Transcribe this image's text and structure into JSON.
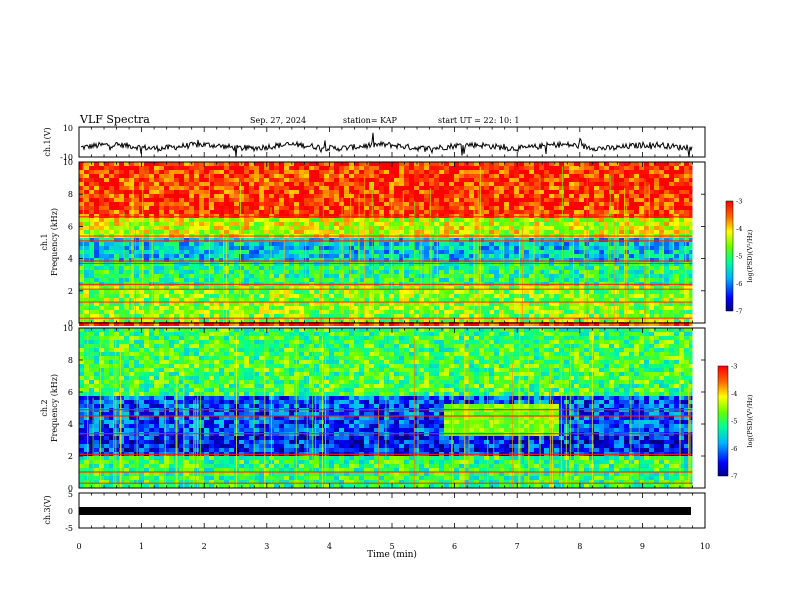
{
  "header": {
    "title": "VLF Spectra",
    "date": "Sep. 27, 2024",
    "station": "station= KAP",
    "start": "start  UT  =   22: 10: 1"
  },
  "chart_data": [
    {
      "type": "line",
      "panel": "ch1-waveform",
      "ylabel": "ch.1(V)",
      "ylim": [
        -10,
        10
      ],
      "yticks": [
        "10",
        "-10"
      ],
      "xlim": [
        0,
        10
      ],
      "series": [
        {
          "description_values_sampled": "noisy waveform around -3 V",
          "mean": -3,
          "range": [
            -10,
            10
          ]
        }
      ]
    },
    {
      "type": "heatmap",
      "panel": "ch1-spectrogram",
      "ylabel": "ch.1\nFrequency (kHz)",
      "ylabel_line1": "ch.1",
      "ylabel_line2": "Frequency (kHz)",
      "ylim": [
        0,
        10
      ],
      "yticks": [
        "0",
        "2",
        "4",
        "6",
        "8",
        "10"
      ],
      "xlim": [
        0,
        10
      ],
      "colorbar": {
        "label": "log(PSD)(V²/Hz)",
        "range": [
          -7,
          -3
        ],
        "ticks": [
          "-3",
          "-4",
          "-5",
          "-6",
          "-7"
        ]
      },
      "bands_khz": [
        {
          "from": 0,
          "to": 2.2,
          "level": -4.6
        },
        {
          "from": 2.2,
          "to": 3.9,
          "level": -5.1
        },
        {
          "from": 3.9,
          "to": 5.2,
          "level": -5.6
        },
        {
          "from": 5.2,
          "to": 6.4,
          "level": -4.3
        },
        {
          "from": 6.4,
          "to": 10,
          "level": -3.3
        }
      ],
      "lines_khz": [
        0.3,
        1.3,
        2.1,
        2.4,
        3.7,
        3.85,
        5.1,
        5.4,
        6.6
      ]
    },
    {
      "type": "heatmap",
      "panel": "ch2-spectrogram",
      "ylabel_line1": "ch.2",
      "ylabel_line2": "Frequency (kHz)",
      "ylim": [
        0,
        10
      ],
      "yticks": [
        "0",
        "2",
        "4",
        "6",
        "8",
        "10"
      ],
      "xlim": [
        0,
        10
      ],
      "colorbar": {
        "label": "log(PSD)(V²/Hz)",
        "range": [
          -7,
          -3
        ],
        "ticks": [
          "-3",
          "-4",
          "-5",
          "-6",
          "-7"
        ]
      },
      "bands_khz": [
        {
          "from": 0,
          "to": 2.0,
          "level": -5.0
        },
        {
          "from": 2.0,
          "to": 3.3,
          "level": -6.4
        },
        {
          "from": 3.3,
          "to": 5.8,
          "level": -6.2
        },
        {
          "from": 5.8,
          "to": 10,
          "level": -4.9
        }
      ],
      "lines_khz": [
        0.3,
        1.0,
        2.1,
        3.4,
        4.5,
        4.9
      ],
      "emission": {
        "x_from": 5.8,
        "x_to": 7.6,
        "f_from": 3.3,
        "f_to": 5.2
      }
    },
    {
      "type": "line",
      "panel": "ch3-waveform",
      "ylabel": "ch.3(V)",
      "ylim": [
        -5,
        5
      ],
      "yticks": [
        "5",
        "0",
        "-5"
      ],
      "xlim": [
        0,
        10
      ],
      "series": [
        {
          "description_values_sampled": "flat thick trace",
          "mean": -2
        }
      ]
    }
  ],
  "xaxis": {
    "label": "Time  (min)",
    "ticks": [
      "0",
      "1",
      "2",
      "3",
      "4",
      "5",
      "6",
      "7",
      "8",
      "9",
      "10"
    ],
    "data_end_min": 9.8
  },
  "colors": {
    "scale": [
      "#0000c8",
      "#0050ff",
      "#00c8ff",
      "#00ff80",
      "#80ff00",
      "#ffff00",
      "#ff8000",
      "#ff0000"
    ]
  }
}
